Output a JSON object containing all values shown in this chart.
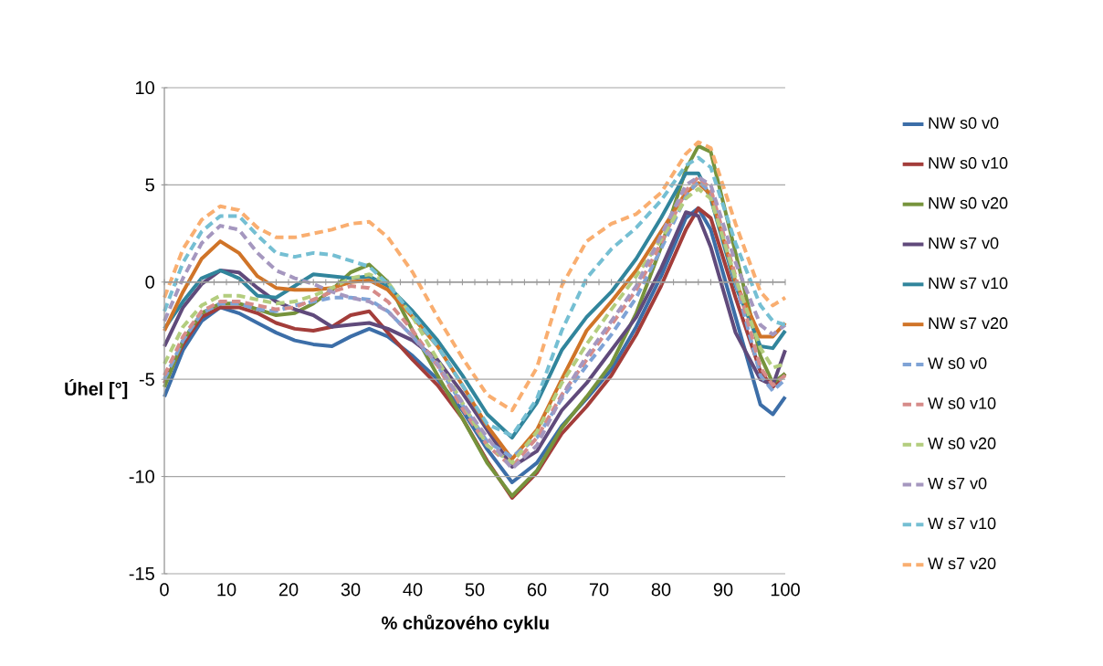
{
  "chart_data": {
    "type": "line",
    "xlabel": "% chůzového cyklu",
    "ylabel": "Úhel [°]",
    "x": [
      0,
      3,
      6,
      9,
      12,
      15,
      18,
      21,
      24,
      27,
      30,
      33,
      36,
      40,
      44,
      48,
      52,
      56,
      60,
      64,
      68,
      72,
      76,
      80,
      84,
      86,
      88,
      92,
      96,
      98,
      100
    ],
    "xlim": [
      0,
      100
    ],
    "xticks": [
      0,
      {
        "value": 2,
        "label": null
      },
      {
        "value": 4,
        "label": null
      },
      {
        "value": 6,
        "label": null
      },
      {
        "value": 8,
        "label": null
      },
      10,
      {
        "value": 12,
        "label": null
      },
      {
        "value": 14,
        "label": null
      },
      {
        "value": 16,
        "label": null
      },
      {
        "value": 18,
        "label": null
      },
      20,
      {
        "value": 22,
        "label": null
      },
      {
        "value": 24,
        "label": null
      },
      {
        "value": 26,
        "label": null
      },
      {
        "value": 28,
        "label": null
      },
      30,
      {
        "value": 32,
        "label": null
      },
      {
        "value": 34,
        "label": null
      },
      {
        "value": 36,
        "label": null
      },
      {
        "value": 38,
        "label": null
      },
      40,
      {
        "value": 42,
        "label": null
      },
      {
        "value": 44,
        "label": null
      },
      {
        "value": 46,
        "label": null
      },
      {
        "value": 48,
        "label": null
      },
      50,
      {
        "value": 52,
        "label": null
      },
      {
        "value": 54,
        "label": null
      },
      {
        "value": 56,
        "label": null
      },
      {
        "value": 58,
        "label": null
      },
      60,
      {
        "value": 62,
        "label": null
      },
      {
        "value": 64,
        "label": null
      },
      {
        "value": 66,
        "label": null
      },
      {
        "value": 68,
        "label": null
      },
      70,
      {
        "value": 72,
        "label": null
      },
      {
        "value": 74,
        "label": null
      },
      {
        "value": 76,
        "label": null
      },
      {
        "value": 78,
        "label": null
      },
      80,
      {
        "value": 82,
        "label": null
      },
      {
        "value": 84,
        "label": null
      },
      {
        "value": 86,
        "label": null
      },
      {
        "value": 88,
        "label": null
      },
      90,
      {
        "value": 92,
        "label": null
      },
      {
        "value": 94,
        "label": null
      },
      {
        "value": 96,
        "label": null
      },
      {
        "value": 98,
        "label": null
      },
      100
    ],
    "ylim": [
      -15,
      10
    ],
    "yticks": [
      -15,
      -10,
      -5,
      0,
      5,
      10
    ],
    "grid": "y",
    "legend": "right",
    "marker": "none",
    "series": [
      {
        "name": "NW s0 v0",
        "color": "#3c6ea8",
        "line_style": "solid",
        "values": [
          -5.9,
          -3.5,
          -2,
          -1.3,
          -1.6,
          -2.1,
          -2.6,
          -3,
          -3.2,
          -3.3,
          -2.8,
          -2.4,
          -2.8,
          -3.8,
          -5,
          -6.6,
          -8.6,
          -10.3,
          -9.3,
          -7.4,
          -6,
          -4.5,
          -2.3,
          0.3,
          3.3,
          3.8,
          2.7,
          -1.8,
          -6.3,
          -6.8,
          -5.9
        ]
      },
      {
        "name": "NW s0 v10",
        "color": "#a33d3a",
        "line_style": "solid",
        "values": [
          -5.2,
          -3.2,
          -1.8,
          -1.3,
          -1.3,
          -1.6,
          -2.1,
          -2.4,
          -2.5,
          -2.3,
          -1.7,
          -1.5,
          -2.6,
          -4,
          -5.3,
          -7,
          -9.2,
          -11.1,
          -9.8,
          -7.8,
          -6.4,
          -4.8,
          -2.7,
          -0.2,
          2.7,
          3.8,
          3.3,
          -0.8,
          -4.6,
          -5.4,
          -4.7
        ]
      },
      {
        "name": "NW s0 v20",
        "color": "#76933c",
        "line_style": "solid",
        "values": [
          -5.4,
          -3,
          -1.6,
          -1.1,
          -1.1,
          -1.4,
          -1.7,
          -1.6,
          -1.1,
          -0.4,
          0.5,
          0.9,
          0,
          -2.5,
          -4.8,
          -7,
          -9.3,
          -11,
          -9.7,
          -7.5,
          -5.9,
          -4.2,
          -1.6,
          1.8,
          5.8,
          7,
          6.7,
          1.5,
          -3.8,
          -5.2,
          -4.7
        ]
      },
      {
        "name": "NW s7 v0",
        "color": "#604a7b",
        "line_style": "solid",
        "values": [
          -3.3,
          -1.3,
          -0.1,
          0.6,
          0.5,
          -0.3,
          -1,
          -1.4,
          -1.7,
          -2.3,
          -2.2,
          -2.1,
          -2.4,
          -3,
          -4,
          -5.7,
          -7.6,
          -9.5,
          -8.7,
          -6.6,
          -5.2,
          -3.5,
          -1.8,
          0.7,
          3.6,
          3.4,
          1.8,
          -2.6,
          -5,
          -5.3,
          -3.5
        ]
      },
      {
        "name": "NW s7 v10",
        "color": "#31859c",
        "line_style": "solid",
        "values": [
          -2.4,
          -1,
          0.2,
          0.6,
          0.2,
          -0.7,
          -0.8,
          -0.2,
          0.4,
          0.3,
          0.2,
          0.3,
          -0.2,
          -1.5,
          -3,
          -4.8,
          -6.8,
          -8,
          -6.2,
          -3.5,
          -1.8,
          -0.5,
          1.2,
          3.3,
          5.6,
          5.6,
          4.3,
          -0.2,
          -3.3,
          -3.4,
          -2.5
        ]
      },
      {
        "name": "NW s7 v20",
        "color": "#d07428",
        "line_style": "solid",
        "values": [
          -2.5,
          -0.5,
          1.2,
          2.1,
          1.5,
          0.3,
          -0.3,
          -0.4,
          -0.4,
          -0.3,
          0,
          0.1,
          -0.4,
          -1.8,
          -3.3,
          -5.3,
          -7.4,
          -9.1,
          -7.6,
          -5,
          -2.5,
          -1,
          0.6,
          2.6,
          4.6,
          5.1,
          4.5,
          0,
          -2.8,
          -2.8,
          -2.1
        ]
      },
      {
        "name": "W s0 v0",
        "color": "#7fa3d6",
        "line_style": "dashed",
        "values": [
          -5,
          -3,
          -1.6,
          -1.1,
          -1.1,
          -1.4,
          -1.5,
          -1.2,
          -1,
          -0.8,
          -0.8,
          -0.9,
          -1.5,
          -2.8,
          -4.3,
          -6.3,
          -8.2,
          -9,
          -8,
          -6,
          -4.3,
          -2.7,
          -0.8,
          1.7,
          4.4,
          5.2,
          4.6,
          0,
          -4.8,
          -5.6,
          -5
        ]
      },
      {
        "name": "W s0 v10",
        "color": "#d68b89",
        "line_style": "dashed",
        "values": [
          -4.8,
          -2.8,
          -1.5,
          -1,
          -1,
          -1.2,
          -1.4,
          -1.3,
          -0.9,
          -0.5,
          -0.2,
          -0.3,
          -1,
          -2.5,
          -4.3,
          -6.5,
          -8.4,
          -9.5,
          -8,
          -5.8,
          -4,
          -2.2,
          -0.4,
          2,
          4.7,
          5.4,
          4.8,
          0.3,
          -4.4,
          -5.3,
          -4.8
        ]
      },
      {
        "name": "W s0 v20",
        "color": "#b3cd7e",
        "line_style": "dashed",
        "values": [
          -4.2,
          -2.3,
          -1.2,
          -0.7,
          -0.7,
          -0.9,
          -1.1,
          -1,
          -0.7,
          -0.3,
          0.2,
          0.4,
          0,
          -1.8,
          -4,
          -6.2,
          -8.4,
          -9.3,
          -7.7,
          -5.2,
          -3.2,
          -1.4,
          0.3,
          2.2,
          4.3,
          4.8,
          4.3,
          0.2,
          -3.4,
          -4.4,
          -4.2
        ]
      },
      {
        "name": "W s7 v0",
        "color": "#a597bf",
        "line_style": "dashed",
        "values": [
          -2,
          0.2,
          2,
          2.9,
          2.7,
          1.5,
          0.6,
          0.2,
          -0.1,
          -0.5,
          -0.8,
          -1,
          -1.5,
          -2.8,
          -4.2,
          -6.2,
          -8,
          -9.6,
          -8.4,
          -5.9,
          -3.8,
          -2,
          -0.2,
          2.4,
          5,
          5.4,
          5,
          1,
          -2.2,
          -2.7,
          -2.2
        ]
      },
      {
        "name": "W s7 v10",
        "color": "#75bfd3",
        "line_style": "dashed",
        "values": [
          -1.5,
          1,
          2.6,
          3.4,
          3.4,
          2.4,
          1.5,
          1.3,
          1.5,
          1.4,
          1.1,
          0.8,
          -0.1,
          -1.7,
          -3.3,
          -5.3,
          -7.3,
          -7.9,
          -6,
          -2.5,
          0.2,
          1.7,
          2.8,
          4.2,
          6,
          6.4,
          5.9,
          2,
          -1.2,
          -2,
          -2.2
        ]
      },
      {
        "name": "W s7 v20",
        "color": "#f9ae70",
        "line_style": "dashed",
        "values": [
          -0.8,
          1.7,
          3.2,
          3.9,
          3.7,
          2.8,
          2.3,
          2.3,
          2.5,
          2.7,
          3,
          3.1,
          2.3,
          0.5,
          -1.8,
          -3.9,
          -5.8,
          -6.6,
          -4.4,
          -0.2,
          2.1,
          3,
          3.5,
          4.6,
          6.6,
          7.2,
          6.9,
          3,
          -0.5,
          -1.2,
          -0.8
        ]
      }
    ]
  }
}
